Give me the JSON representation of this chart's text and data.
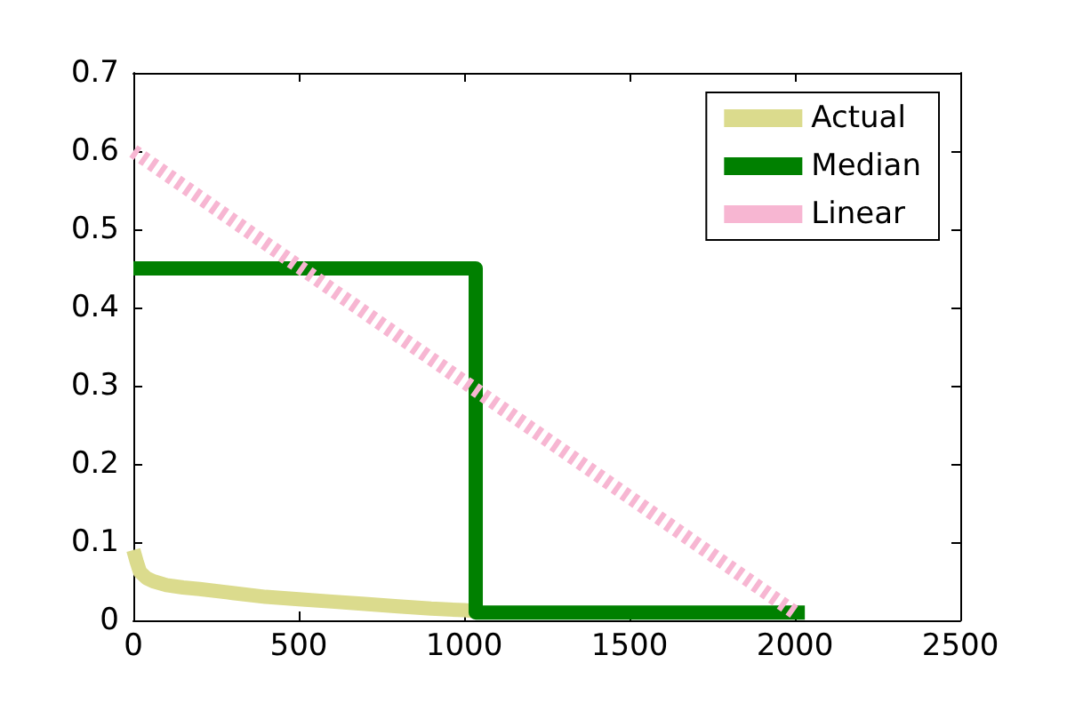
{
  "chart_data": {
    "type": "line",
    "series": [
      {
        "name": "Actual",
        "color": "#dbdb8d",
        "x": [
          0,
          10,
          20,
          40,
          60,
          100,
          150,
          200,
          300,
          400,
          500,
          600,
          700,
          800,
          900,
          1000,
          1030
        ],
        "values": [
          0.09,
          0.075,
          0.062,
          0.054,
          0.05,
          0.045,
          0.042,
          0.04,
          0.035,
          0.03,
          0.027,
          0.024,
          0.021,
          0.018,
          0.015,
          0.013,
          0.012
        ]
      },
      {
        "name": "Median",
        "color": "#008000",
        "x": [
          0,
          1035,
          1035,
          2030
        ],
        "values": [
          0.45,
          0.45,
          0.01,
          0.01
        ]
      },
      {
        "name": "Linear",
        "color": "#f7b6d2",
        "line_style": "dashed",
        "x": [
          0,
          2000
        ],
        "values": [
          0.6,
          0.01
        ]
      }
    ],
    "xlim": [
      0,
      2500
    ],
    "xticks": [
      0,
      500,
      1000,
      1500,
      2000,
      2500
    ],
    "ylim": [
      0,
      0.7
    ],
    "yticks": [
      0,
      0.1,
      0.2,
      0.3,
      0.4,
      0.5,
      0.6,
      0.7
    ],
    "grid": false,
    "legend": "top right",
    "marker": "none"
  }
}
